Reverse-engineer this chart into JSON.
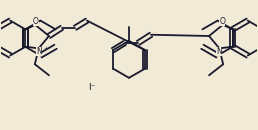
{
  "bg_color": "#f0ead6",
  "line_color": "#1a1a2e",
  "lw": 1.3,
  "figsize": [
    2.58,
    1.3
  ],
  "dpi": 100,
  "xlim": [
    0,
    10
  ],
  "ylim": [
    0,
    5
  ]
}
